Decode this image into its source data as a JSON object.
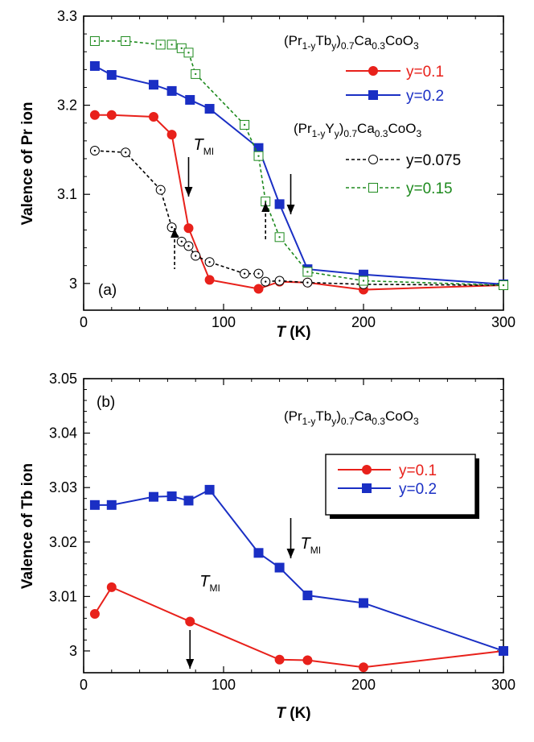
{
  "chart_data": [
    {
      "type": "line",
      "panel_label": "(a)",
      "ylabel": "Valence of Pr ion",
      "xlabel": {
        "var": "T",
        "unit": " (K)"
      },
      "xlim": [
        0,
        300
      ],
      "ylim": [
        2.97,
        3.3
      ],
      "xticks": [
        0,
        100,
        200,
        300
      ],
      "yticks": [
        3,
        3.1,
        3.2,
        3.3
      ],
      "ytick_labels": [
        "3",
        "3.1",
        "3.2",
        "3.3"
      ],
      "formula1": {
        "parts": [
          "(Pr",
          "1-y",
          "Tb",
          "y",
          ")",
          "0.7",
          "Ca",
          "0.3",
          "CoO",
          "3"
        ]
      },
      "formula2": {
        "parts": [
          "(Pr",
          "1-y",
          "Y",
          "y",
          ")",
          "0.7",
          "Ca",
          "0.3",
          "CoO",
          "3"
        ]
      },
      "series": [
        {
          "name": "y=0.1",
          "color": "#e8211b",
          "style": "solid",
          "marker": "circle-filled",
          "x": [
            8,
            20,
            50,
            63,
            75,
            90,
            125,
            140,
            160,
            200,
            300
          ],
          "y": [
            3.189,
            3.189,
            3.187,
            3.167,
            3.062,
            3.004,
            2.994,
            3.002,
            3.001,
            2.993,
            2.998
          ]
        },
        {
          "name": "y=0.2",
          "color": "#1a2fc4",
          "style": "solid",
          "marker": "square-filled",
          "x": [
            8,
            20,
            50,
            63,
            76,
            90,
            125,
            140,
            160,
            200,
            300
          ],
          "y": [
            3.244,
            3.234,
            3.223,
            3.216,
            3.206,
            3.196,
            3.152,
            3.089,
            3.016,
            3.01,
            2.999
          ]
        },
        {
          "name": "y=0.075",
          "color": "#000000",
          "style": "dashed",
          "marker": "circle-open",
          "x": [
            8,
            30,
            55,
            63,
            70,
            75,
            80,
            90,
            115,
            125,
            130,
            140,
            160,
            200,
            300
          ],
          "y": [
            3.149,
            3.147,
            3.105,
            3.063,
            3.047,
            3.042,
            3.031,
            3.024,
            3.011,
            3.011,
            3.002,
            3.003,
            3.001,
            2.999,
            2.998
          ]
        },
        {
          "name": "y=0.15",
          "color": "#1e8a1e",
          "style": "dashed",
          "marker": "square-open",
          "x": [
            8,
            30,
            55,
            63,
            70,
            75,
            80,
            115,
            125,
            130,
            140,
            160,
            200,
            300
          ],
          "y": [
            3.272,
            3.272,
            3.268,
            3.268,
            3.264,
            3.259,
            3.235,
            3.178,
            3.143,
            3.092,
            3.052,
            3.013,
            3.003,
            2.998
          ]
        }
      ],
      "legend_groups": [
        {
          "formula": "formula1",
          "series": [
            0,
            1
          ]
        },
        {
          "formula": "formula2",
          "series": [
            2,
            3
          ]
        }
      ],
      "annotations": [
        {
          "kind": "arrow-down",
          "x": 75,
          "label": "T",
          "label_sub": "MI"
        },
        {
          "kind": "arrow-up-dashed",
          "x": 65
        },
        {
          "kind": "arrow-up-dashed",
          "x": 130
        },
        {
          "kind": "arrow-down",
          "x": 148
        }
      ]
    },
    {
      "type": "line",
      "panel_label": "(b)",
      "ylabel": "Valence of Tb ion",
      "xlabel": {
        "var": "T",
        "unit": " (K)"
      },
      "xlim": [
        0,
        300
      ],
      "ylim": [
        2.996,
        3.05
      ],
      "xticks": [
        0,
        100,
        200,
        300
      ],
      "yticks": [
        3,
        3.01,
        3.02,
        3.03,
        3.04,
        3.05
      ],
      "ytick_labels": [
        "3",
        "3.01",
        "3.02",
        "3.03",
        "3.04",
        "3.05"
      ],
      "formula1": {
        "parts": [
          "(Pr",
          "1-y",
          "Tb",
          "y",
          ")",
          "0.7",
          "Ca",
          "0.3",
          "CoO",
          "3"
        ]
      },
      "series": [
        {
          "name": "y=0.1",
          "color": "#e8211b",
          "style": "solid",
          "marker": "circle-filled",
          "x": [
            8,
            20,
            76,
            140,
            160,
            200,
            300
          ],
          "y": [
            3.0068,
            3.0117,
            3.0054,
            2.9984,
            2.9983,
            2.997,
            3.0
          ]
        },
        {
          "name": "y=0.2",
          "color": "#1a2fc4",
          "style": "solid",
          "marker": "square-filled",
          "x": [
            8,
            20,
            50,
            63,
            75,
            90,
            125,
            140,
            160,
            200,
            300
          ],
          "y": [
            3.0268,
            3.0268,
            3.0283,
            3.0284,
            3.0276,
            3.0296,
            3.018,
            3.0153,
            3.0102,
            3.0088,
            3.0
          ]
        }
      ],
      "annotations": [
        {
          "kind": "arrow-down",
          "x": 76,
          "label": "T",
          "label_sub": "MI"
        },
        {
          "kind": "arrow-down",
          "x": 148,
          "label": "T",
          "label_sub": "MI"
        }
      ]
    }
  ]
}
